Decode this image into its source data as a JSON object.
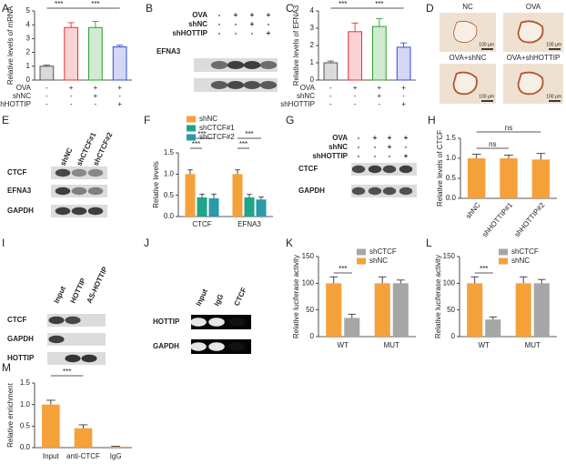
{
  "chart_data": [
    {
      "panel": "A",
      "type": "bar",
      "ylabel": "Relative levels of mRNA",
      "values": [
        1.0,
        3.8,
        3.8,
        2.4
      ],
      "errors": [
        0.08,
        0.35,
        0.45,
        0.12
      ],
      "colors": [
        "#555555",
        "#e8313a",
        "#2ca02c",
        "#3a4bd6"
      ],
      "ylim": [
        0,
        5
      ],
      "yticks": [
        0,
        1,
        2,
        3,
        4,
        5
      ],
      "annotations": [
        "***",
        "***"
      ],
      "treatments": [
        {
          "name": "OVA",
          "signs": [
            "-",
            "+",
            "+",
            "+"
          ]
        },
        {
          "name": "shNC",
          "signs": [
            "-",
            "-",
            "+",
            "-"
          ]
        },
        {
          "name": "shHOTTIP",
          "signs": [
            "-",
            "-",
            "-",
            "+"
          ]
        }
      ]
    },
    {
      "panel": "C",
      "type": "bar",
      "ylabel": "Relative levels of EFNA3",
      "values": [
        1.0,
        2.8,
        3.1,
        1.9
      ],
      "errors": [
        0.1,
        0.5,
        0.45,
        0.25
      ],
      "colors": [
        "#555555",
        "#e8313a",
        "#2ca02c",
        "#3a4bd6"
      ],
      "ylim": [
        0,
        4
      ],
      "yticks": [
        0,
        1,
        2,
        3,
        4
      ],
      "annotations": [
        "***",
        "***"
      ],
      "treatments": [
        {
          "name": "OVA",
          "signs": [
            "-",
            "+",
            "+",
            "+"
          ]
        },
        {
          "name": "shNC",
          "signs": [
            "-",
            "-",
            "+",
            "-"
          ]
        },
        {
          "name": "shHOTTIP",
          "signs": [
            "-",
            "-",
            "-",
            "+"
          ]
        }
      ]
    },
    {
      "panel": "F",
      "type": "bar",
      "ylabel": "Relative levels",
      "categories": [
        "CTCF",
        "EFNA3"
      ],
      "series": [
        {
          "name": "shNC",
          "color": "#f5a13a",
          "values": [
            1.0,
            1.0
          ],
          "errors": [
            0.1,
            0.1
          ]
        },
        {
          "name": "shCTCF#1",
          "color": "#1ea58a",
          "values": [
            0.45,
            0.45
          ],
          "errors": [
            0.08,
            0.07
          ]
        },
        {
          "name": "shCTCF#2",
          "color": "#2a9ba8",
          "values": [
            0.43,
            0.4
          ],
          "errors": [
            0.1,
            0.06
          ]
        }
      ],
      "ylim": [
        0,
        1.5
      ],
      "yticks": [
        {
          "value": 0,
          "label": "0.0"
        },
        {
          "value": 0.5,
          "label": "0.5"
        },
        {
          "value": 1,
          "label": "1.0"
        },
        {
          "value": 1.5,
          "label": "1.5"
        }
      ],
      "annotations": [
        "***",
        "***",
        "***",
        "***"
      ]
    },
    {
      "panel": "H",
      "type": "bar",
      "ylabel": "Relative levels of CTCF",
      "categories": [
        "shNC",
        "shHOTTIP#1",
        "shHOTTIP#2"
      ],
      "values": [
        1.0,
        1.0,
        0.97
      ],
      "errors": [
        0.1,
        0.08,
        0.15
      ],
      "color": "#f5a13a",
      "ylim": [
        0,
        1.5
      ],
      "yticks": [
        {
          "value": 0,
          "label": "0.0"
        },
        {
          "value": 0.5,
          "label": "0.5"
        },
        {
          "value": 1,
          "label": "1.0"
        },
        {
          "value": 1.5,
          "label": "1.5"
        }
      ],
      "annotations": [
        "ns",
        "ns"
      ]
    },
    {
      "panel": "K",
      "type": "bar",
      "ylabel": "Relative luciferase activity",
      "categories": [
        "WT",
        "MUT"
      ],
      "series": [
        {
          "name": "shCTCF",
          "color": "#a6a6a6",
          "values": [
            35,
            100
          ],
          "errors": [
            7,
            6
          ]
        },
        {
          "name": "shNC",
          "color": "#f5a13a",
          "values": [
            100,
            100
          ],
          "errors": [
            12,
            12
          ]
        }
      ],
      "ylim": [
        0,
        150
      ],
      "yticks": [
        0,
        50,
        100,
        150
      ],
      "annotations": [
        "***"
      ]
    },
    {
      "panel": "L",
      "type": "bar",
      "ylabel": "Relative luciferase activity",
      "categories": [
        "WT",
        "MUT"
      ],
      "series": [
        {
          "name": "shCTCF",
          "color": "#a6a6a6",
          "values": [
            32,
            100
          ],
          "errors": [
            5,
            7
          ]
        },
        {
          "name": "shNC",
          "color": "#f5a13a",
          "values": [
            100,
            100
          ],
          "errors": [
            12,
            12
          ]
        }
      ],
      "ylim": [
        0,
        150
      ],
      "yticks": [
        0,
        50,
        100,
        150
      ],
      "annotations": [
        "***"
      ]
    },
    {
      "panel": "M",
      "type": "bar",
      "ylabel": "Relative enrichment",
      "categories": [
        "Input",
        "anti-CTCF",
        "IgG"
      ],
      "values": [
        1.0,
        0.45,
        0.02
      ],
      "errors": [
        0.1,
        0.08,
        0.01
      ],
      "color": "#f5a13a",
      "ylim": [
        0,
        1.5
      ],
      "yticks": [
        {
          "value": 0,
          "label": "0.0"
        },
        {
          "value": 0.5,
          "label": "0.5"
        },
        {
          "value": 1,
          "label": "1.0"
        },
        {
          "value": 1.5,
          "label": "1.5"
        }
      ],
      "annotations": [
        "***"
      ]
    }
  ],
  "blots": [
    {
      "panel": "B",
      "conditions": [
        {
          "name": "OVA",
          "signs": [
            "-",
            "+",
            "+",
            "+"
          ]
        },
        {
          "name": "shNC",
          "signs": [
            "-",
            "-",
            "+",
            "-"
          ]
        },
        {
          "name": "shHOTTIP",
          "signs": [
            "-",
            "-",
            "-",
            "+"
          ]
        }
      ],
      "rows": [
        "EFNA3"
      ]
    },
    {
      "panel": "E",
      "lanes": [
        "shNC",
        "shCTCF#1",
        "shCTCF#2"
      ],
      "rows": [
        "CTCF",
        "EFNA3",
        "GAPDH"
      ]
    },
    {
      "panel": "G",
      "conditions": [
        {
          "name": "OVA",
          "signs": [
            "-",
            "+",
            "+",
            "+"
          ]
        },
        {
          "name": "shNC",
          "signs": [
            "-",
            "-",
            "+",
            "-"
          ]
        },
        {
          "name": "shHOTTIP",
          "signs": [
            "-",
            "-",
            "-",
            "+"
          ]
        }
      ],
      "rows": [
        "CTCF",
        "GAPDH"
      ]
    },
    {
      "panel": "I",
      "lanes": [
        "Input",
        "HOTTIP",
        "AS-HOTTIP"
      ],
      "rows": [
        "CTCF",
        "GAPDH",
        "HOTTIP"
      ]
    },
    {
      "panel": "J",
      "lanes": [
        "Input",
        "IgG",
        "CTCF"
      ],
      "rows": [
        "HOTTIP",
        "GAPDH"
      ]
    }
  ],
  "images": {
    "panel": "D",
    "tiles": [
      {
        "label": "NC",
        "scale": "100 μm"
      },
      {
        "label": "OVA",
        "scale": "100 μm"
      },
      {
        "label": "OVA+shNC",
        "scale": "100 μm"
      },
      {
        "label": "OVA+shHOTTIP",
        "scale": "100 μm"
      }
    ]
  }
}
